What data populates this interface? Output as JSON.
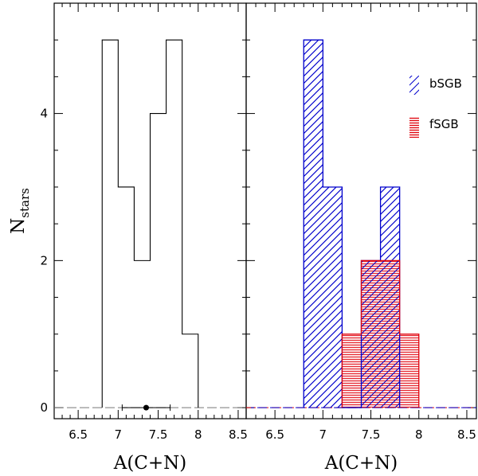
{
  "chart_data": [
    {
      "type": "histogram",
      "panel": "left",
      "xlabel": "A(C+N)",
      "ylabel": "N",
      "ylabel_sub": "stars",
      "xlim": [
        6.2,
        8.6
      ],
      "ylim": [
        -0.15,
        5.5
      ],
      "xticks": [
        6.5,
        7,
        7.5,
        8,
        8.5
      ],
      "yticks": [
        0,
        2,
        4
      ],
      "bins": [
        6.8,
        7.0,
        7.2,
        7.4,
        7.6,
        7.8,
        8.0
      ],
      "counts": [
        5,
        3,
        2,
        4,
        5,
        1
      ],
      "color": "#000000",
      "error_point": {
        "x": 7.35,
        "y": 0,
        "xerr_low": 0.3,
        "xerr_high": 0.3
      }
    },
    {
      "type": "histogram",
      "panel": "right",
      "xlabel": "A(C+N)",
      "xlim": [
        6.2,
        8.6
      ],
      "ylim": [
        -0.15,
        5.5
      ],
      "xticks": [
        6.5,
        7,
        7.5,
        8,
        8.5
      ],
      "yticks": [
        0,
        2,
        4
      ],
      "series": [
        {
          "name": "bSGB",
          "color": "#0000cc",
          "hatch": "diagonal",
          "bins": [
            6.8,
            7.0,
            7.2,
            7.4,
            7.6,
            7.8
          ],
          "counts": [
            5,
            3,
            0,
            2,
            3
          ]
        },
        {
          "name": "fSGB",
          "color": "#e0000a",
          "hatch": "horizontal",
          "bins": [
            7.2,
            7.4,
            7.6,
            7.8,
            8.0
          ],
          "counts": [
            1,
            2,
            2,
            1
          ]
        }
      ]
    }
  ]
}
